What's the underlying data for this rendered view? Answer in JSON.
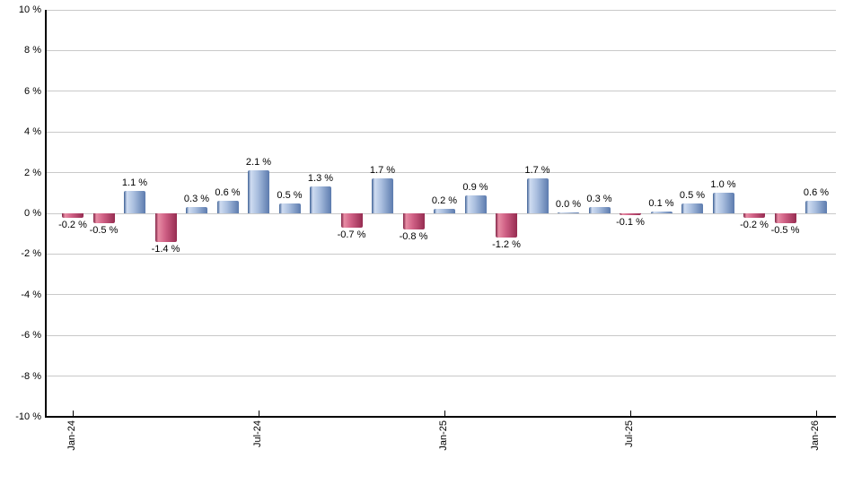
{
  "chart_data": {
    "type": "bar",
    "title": "",
    "xlabel": "",
    "ylabel": "",
    "ylim": [
      -10,
      10
    ],
    "grid": true,
    "y_ticks": [
      10,
      8,
      6,
      4,
      2,
      0,
      -2,
      -4,
      -6,
      -8,
      -10
    ],
    "y_tick_labels": [
      "10 %",
      "8 %",
      "6 %",
      "4 %",
      "2 %",
      "0 %",
      "-2 %",
      "-4 %",
      "-6 %",
      "-8 %",
      "-10 %"
    ],
    "x_tick_labels": [
      "Jan-24",
      "Jul-24",
      "Jan-25",
      "Jul-25",
      "Jan-26"
    ],
    "x_tick_bar_indices": [
      0,
      6,
      12,
      18,
      24
    ],
    "values": [
      -0.2,
      -0.5,
      1.1,
      -1.4,
      0.3,
      0.6,
      2.1,
      0.5,
      1.3,
      -0.7,
      1.7,
      -0.8,
      0.2,
      0.9,
      -1.2,
      1.7,
      0.0,
      0.3,
      -0.1,
      0.1,
      0.5,
      1.0,
      -0.2,
      -0.5,
      0.6
    ],
    "bar_labels": [
      "-0.2 %",
      "-0.5 %",
      "1.1 %",
      "-1.4 %",
      "0.3 %",
      "0.6 %",
      "2.1 %",
      "0.5 %",
      "1.3 %",
      "-0.7 %",
      "1.7 %",
      "-0.8 %",
      "0.2 %",
      "0.9 %",
      "-1.2 %",
      "1.7 %",
      "0.0 %",
      "0.3 %",
      "-0.1 %",
      "0.1 %",
      "0.5 %",
      "1.0 %",
      "-0.2 %",
      "-0.5 %",
      "0.6 %"
    ],
    "colors": {
      "background": "#ffffff",
      "gridline": "#c9c9c9",
      "axis": "#000000",
      "label_text": "#000000",
      "positive_gradient_stops": [
        "#3d6094",
        "#cfdcf1",
        "#aabfdf",
        "#5c7bae"
      ],
      "negative_gradient_stops": [
        "#7e2144",
        "#e78da4",
        "#d06186",
        "#962c51"
      ],
      "gradient_stop_positions": [
        0,
        14,
        45,
        100
      ]
    },
    "legend": null
  }
}
